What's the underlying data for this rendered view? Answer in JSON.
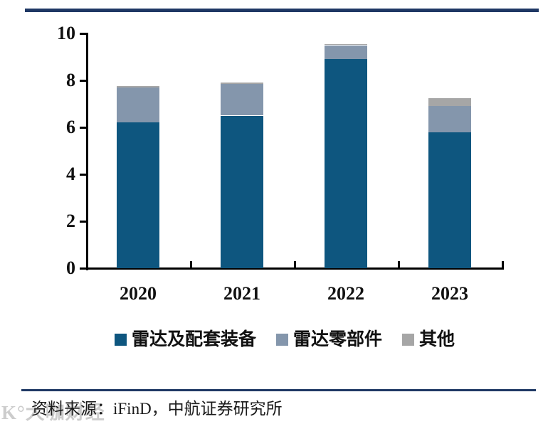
{
  "page": {
    "source_note": "资料来源：iFinD，中航证券研究所",
    "watermark": "K°大咖财经",
    "rule_color": "#1f3864"
  },
  "chart_data": {
    "type": "bar",
    "stacked": true,
    "title": "",
    "xlabel": "",
    "ylabel": "",
    "categories": [
      "2020",
      "2021",
      "2022",
      "2023"
    ],
    "series": [
      {
        "name": "雷达及配套装备",
        "color": "#0e567f",
        "values": [
          6.2,
          6.5,
          8.9,
          5.8
        ]
      },
      {
        "name": "雷达零部件",
        "color": "#8496ac",
        "values": [
          1.5,
          1.35,
          0.6,
          1.1
        ]
      },
      {
        "name": "其他",
        "color": "#a6a6a6",
        "values": [
          0.05,
          0.07,
          0.05,
          0.33
        ]
      }
    ],
    "totals": [
      7.75,
      7.92,
      9.55,
      7.23
    ],
    "ylim": [
      0,
      10
    ],
    "yticks": [
      0,
      2,
      4,
      6,
      8,
      10
    ],
    "grid": false,
    "legend_position": "bottom"
  }
}
